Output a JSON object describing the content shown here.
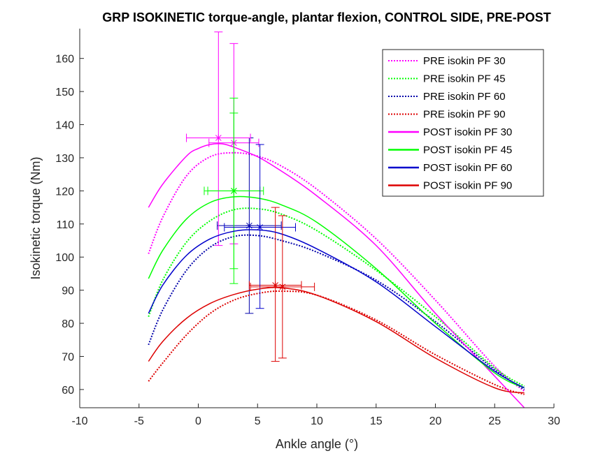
{
  "chart_data": {
    "type": "line",
    "title": "GRP ISOKINETIC torque-angle, plantar flexion, CONTROL SIDE, PRE-POST",
    "xlabel": "Ankle angle (°)",
    "ylabel": "Isokinetic torque (Nm)",
    "xlim": [
      -10,
      30
    ],
    "ylim": [
      54.5,
      169
    ],
    "xticks": [
      -10,
      -5,
      0,
      5,
      10,
      15,
      20,
      25,
      30
    ],
    "yticks": [
      60,
      70,
      80,
      90,
      100,
      110,
      120,
      130,
      140,
      150,
      160
    ],
    "grid": false,
    "legend_position": "top-right",
    "series": [
      {
        "name": "PRE isokin PF 30",
        "color": "#ff00ff",
        "style": "dotted",
        "x": [
          -4.2,
          -3,
          -1,
          1,
          3,
          5,
          7,
          10,
          15,
          20,
          25,
          27.5
        ],
        "y": [
          101,
          112,
          124.5,
          130.3,
          131.5,
          130.5,
          127.5,
          120.5,
          105.5,
          87,
          67,
          59.5
        ],
        "peak": {
          "x": 3,
          "y": 134.5,
          "xerr": 2.1,
          "yerr_low": 30.5,
          "yerr_high": 30
        }
      },
      {
        "name": "PRE isokin PF 45",
        "color": "#00ff00",
        "style": "dotted",
        "x": [
          -4.2,
          -3,
          -1,
          1,
          3,
          5,
          7,
          10,
          15,
          20,
          25,
          27.5
        ],
        "y": [
          82,
          93,
          104.5,
          111,
          114.3,
          114.6,
          113,
          108,
          96,
          82,
          66.5,
          61
        ],
        "peak": {
          "x": 3,
          "y": 120,
          "xerr": 2.5,
          "yerr_low": 28,
          "yerr_high": 28
        }
      },
      {
        "name": "PRE isokin PF 60",
        "color": "#0000aa",
        "style": "dotted",
        "x": [
          -4.2,
          -3,
          -1,
          1,
          3,
          5,
          7,
          10,
          15,
          20,
          25,
          27.5
        ],
        "y": [
          73.5,
          84,
          96,
          103,
          106.2,
          106.5,
          105,
          101.5,
          93,
          80.5,
          66,
          60
        ],
        "peak": {
          "x": 4.3,
          "y": 109.5,
          "xerr": 2.7,
          "yerr_low": 26.5,
          "yerr_high": 26.5
        }
      },
      {
        "name": "PRE isokin PF 90",
        "color": "#dd0000",
        "style": "dotted",
        "x": [
          -4.2,
          -3,
          -1,
          1,
          3,
          5,
          7,
          10,
          15,
          20,
          25,
          27.5
        ],
        "y": [
          62.5,
          68,
          76.5,
          83,
          87,
          89,
          89.7,
          88.5,
          81,
          70.5,
          61.5,
          58.5
        ],
        "peak": {
          "x": 6.5,
          "y": 91.5,
          "xerr": 2.2,
          "yerr_low": 23,
          "yerr_high": 23.5
        }
      },
      {
        "name": "POST isokin PF 30",
        "color": "#ff00ff",
        "style": "solid",
        "x": [
          -4.2,
          -3,
          -1,
          0,
          1,
          2,
          3,
          5,
          7,
          10,
          15,
          20,
          25,
          27.5
        ],
        "y": [
          115,
          122,
          130.5,
          132.8,
          134,
          134.2,
          133.2,
          130.3,
          126,
          118.5,
          103.5,
          83,
          64,
          54.5
        ],
        "peak": {
          "x": 1.7,
          "y": 136,
          "xerr": 2.7,
          "yerr_low": 32.5,
          "yerr_high": 32
        }
      },
      {
        "name": "POST isokin PF 45",
        "color": "#00ff00",
        "style": "solid",
        "x": [
          -4.2,
          -3,
          -1,
          1,
          3,
          5,
          7,
          10,
          15,
          20,
          25,
          27.5
        ],
        "y": [
          93.5,
          102,
          111.5,
          116.5,
          118.2,
          117.8,
          115.8,
          110.5,
          96.5,
          80,
          65,
          60.5
        ],
        "peak": {
          "x": 3,
          "y": 120,
          "xerr": 2.2,
          "yerr_low": 23.5,
          "yerr_high": 23.5
        }
      },
      {
        "name": "POST isokin PF 60",
        "color": "#0000cc",
        "style": "solid",
        "x": [
          -4.2,
          -3,
          -1,
          1,
          3,
          5,
          7,
          10,
          15,
          20,
          25,
          27.5
        ],
        "y": [
          83,
          91.5,
          100.5,
          105.5,
          107.8,
          108.2,
          107,
          102.5,
          92.5,
          79,
          65.5,
          60.5
        ],
        "peak": {
          "x": 5.2,
          "y": 109,
          "xerr": 3,
          "yerr_low": 24.5,
          "yerr_high": 25
        }
      },
      {
        "name": "POST isokin PF 90",
        "color": "#dd0000",
        "style": "solid",
        "x": [
          -4.2,
          -3,
          -1,
          1,
          3,
          5,
          7,
          10,
          15,
          20,
          25,
          27.5
        ],
        "y": [
          68.5,
          74.5,
          81.5,
          86,
          88.7,
          90.3,
          90.7,
          88.5,
          80.5,
          69.5,
          60.5,
          59
        ],
        "peak": {
          "x": 7.1,
          "y": 91,
          "xerr": 2.7,
          "yerr_low": 21.5,
          "yerr_high": 21.5
        }
      }
    ]
  }
}
